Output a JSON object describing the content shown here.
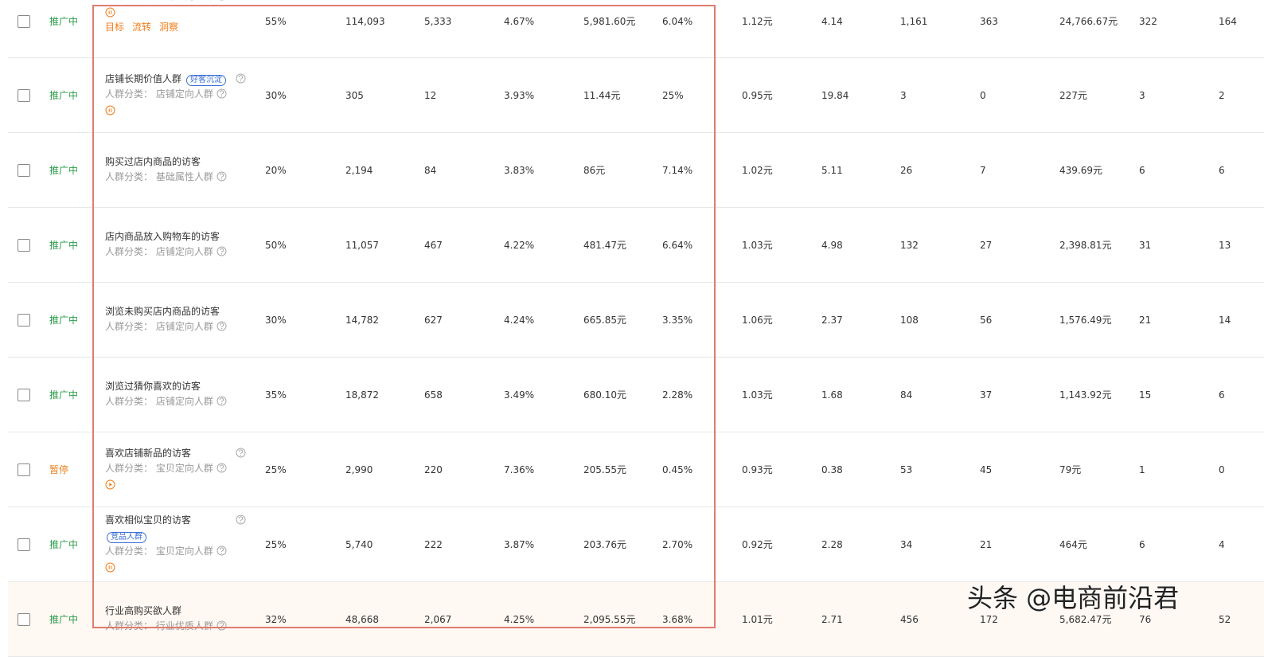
{
  "table": {
    "rows": [
      {
        "status": "推广中",
        "category": "人群分类： 店铺定向人群",
        "actions": [
          "目标",
          "流转",
          "洞察"
        ],
        "cells": [
          "55%",
          "114,093",
          "5,333",
          "4.67%",
          "5,981.60元",
          "6.04%",
          "1.12元",
          "4.14",
          "1,161",
          "363",
          "24,766.67元",
          "322",
          "164"
        ]
      },
      {
        "status": "推广中",
        "name": "店铺长期价值人群",
        "tag": "好客沉淀",
        "category": "人群分类： 店铺定向人群",
        "cells": [
          "30%",
          "305",
          "12",
          "3.93%",
          "11.44元",
          "25%",
          "0.95元",
          "19.84",
          "3",
          "0",
          "227元",
          "3",
          "2"
        ]
      },
      {
        "status": "推广中",
        "name": "购买过店内商品的访客",
        "category": "人群分类： 基础属性人群",
        "cells": [
          "20%",
          "2,194",
          "84",
          "3.83%",
          "86元",
          "7.14%",
          "1.02元",
          "5.11",
          "26",
          "7",
          "439.69元",
          "6",
          "6"
        ]
      },
      {
        "status": "推广中",
        "name": "店内商品放入购物车的访客",
        "category": "人群分类： 店铺定向人群",
        "cells": [
          "50%",
          "11,057",
          "467",
          "4.22%",
          "481.47元",
          "6.64%",
          "1.03元",
          "4.98",
          "132",
          "27",
          "2,398.81元",
          "31",
          "13"
        ]
      },
      {
        "status": "推广中",
        "name": "浏览未购买店内商品的访客",
        "category": "人群分类： 店铺定向人群",
        "cells": [
          "30%",
          "14,782",
          "627",
          "4.24%",
          "665.85元",
          "3.35%",
          "1.06元",
          "2.37",
          "108",
          "56",
          "1,576.49元",
          "21",
          "14"
        ]
      },
      {
        "status": "推广中",
        "name": "浏览过猜你喜欢的访客",
        "category": "人群分类： 店铺定向人群",
        "cells": [
          "35%",
          "18,872",
          "658",
          "3.49%",
          "680.10元",
          "2.28%",
          "1.03元",
          "1.68",
          "84",
          "37",
          "1,143.92元",
          "15",
          "6"
        ]
      },
      {
        "status": "暂停",
        "name": "喜欢店铺新品的访客",
        "category": "人群分类： 宝贝定向人群",
        "cells": [
          "25%",
          "2,990",
          "220",
          "7.36%",
          "205.55元",
          "0.45%",
          "0.93元",
          "0.38",
          "53",
          "45",
          "79元",
          "1",
          "0"
        ]
      },
      {
        "status": "推广中",
        "name": "喜欢相似宝贝的访客",
        "tag": "竞品人群",
        "category": "人群分类： 宝贝定向人群",
        "cells": [
          "25%",
          "5,740",
          "222",
          "3.87%",
          "203.76元",
          "2.70%",
          "0.92元",
          "2.28",
          "34",
          "21",
          "464元",
          "6",
          "4"
        ]
      },
      {
        "status": "推广中",
        "name": "行业高购买欲人群",
        "category": "人群分类： 行业优质人群",
        "cells": [
          "32%",
          "48,668",
          "2,067",
          "4.25%",
          "2,095.55元",
          "3.68%",
          "1.01元",
          "2.71",
          "456",
          "172",
          "5,682.47元",
          "76",
          "52"
        ]
      }
    ]
  },
  "watermark": "头条 @电商前沿君"
}
